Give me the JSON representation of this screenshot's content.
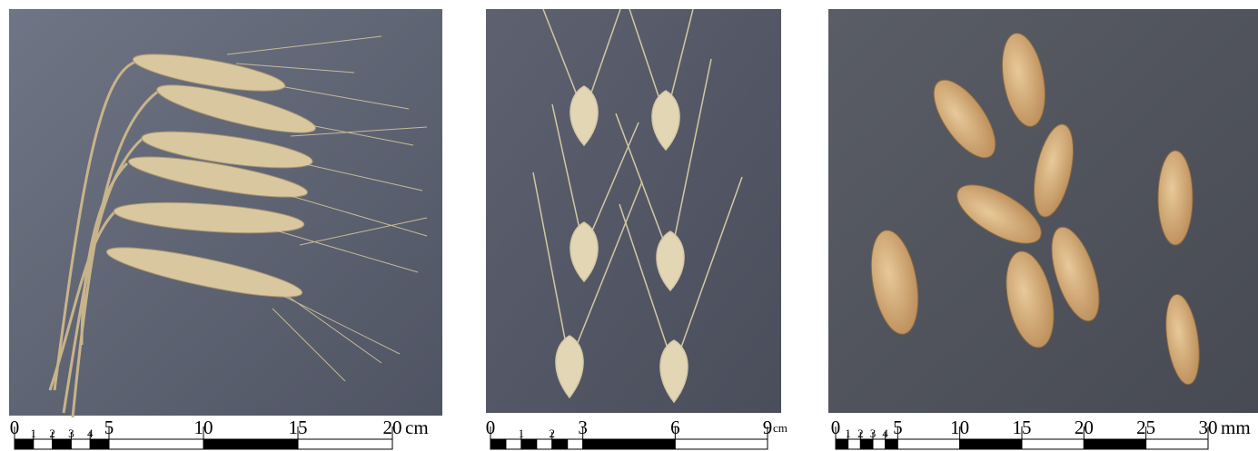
{
  "panels": [
    {
      "scale": {
        "ticks": [
          0,
          1,
          2,
          3,
          4,
          5,
          10,
          15,
          20
        ],
        "unit": "cm"
      }
    },
    {
      "scale": {
        "ticks": [
          0,
          1,
          2,
          3,
          6,
          9
        ],
        "unit": "cm"
      }
    },
    {
      "scale": {
        "ticks": [
          0,
          1,
          2,
          3,
          4,
          5,
          10,
          15,
          20,
          25,
          30
        ],
        "unit": "mm"
      }
    }
  ]
}
